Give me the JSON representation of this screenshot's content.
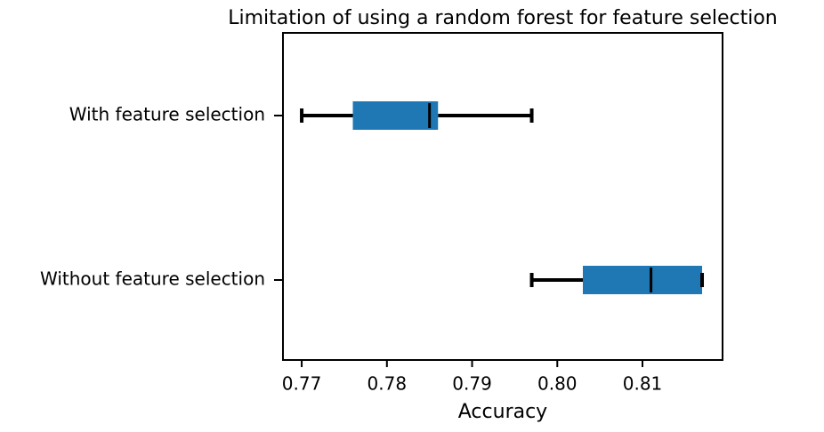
{
  "chart_data": {
    "type": "boxplot",
    "orientation": "horizontal",
    "title": "Limitation of using a random forest for feature selection",
    "xlabel": "Accuracy",
    "categories": [
      "With feature selection",
      "Without feature selection"
    ],
    "boxes": [
      {
        "min": 0.77,
        "q1": 0.776,
        "median": 0.785,
        "q3": 0.786,
        "max": 0.797
      },
      {
        "min": 0.797,
        "q1": 0.803,
        "median": 0.811,
        "q3": 0.817,
        "max": 0.817
      }
    ],
    "color": "#1f77b4",
    "xlim": [
      0.7678,
      0.8194
    ],
    "xticks": [
      0.77,
      0.78,
      0.79,
      {
        "value": 0.8,
        "label": "0.80"
      },
      0.81
    ]
  }
}
